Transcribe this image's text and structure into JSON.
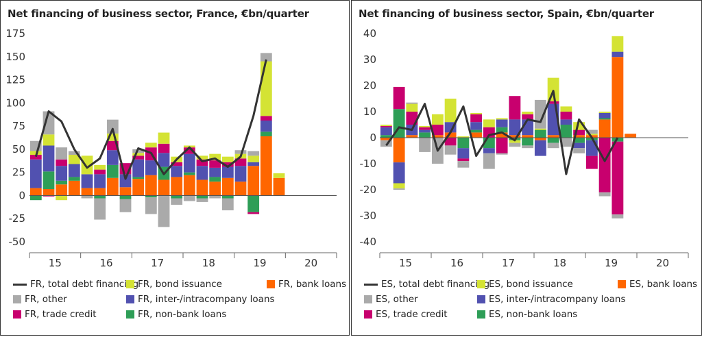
{
  "chart_data": [
    {
      "type": "bar",
      "stacked": true,
      "title": "Net financing of business sector, France, €bn/quarter",
      "ylim": [
        -50,
        175
      ],
      "yticks": [
        175,
        150,
        125,
        100,
        75,
        50,
        25,
        0,
        -25,
        -50
      ],
      "xtick_labels": [
        "15",
        "16",
        "17",
        "18",
        "19",
        "20"
      ],
      "quarters_per_year": 4,
      "first_quarter_index": 0,
      "series": [
        {
          "name": "FR, bank loans",
          "color": "#ff6600",
          "values": [
            8,
            7,
            12,
            16,
            8,
            8,
            19,
            9,
            18,
            22,
            17,
            20,
            22,
            17,
            15,
            19,
            15,
            32,
            64,
            19
          ]
        },
        {
          "name": "FR, non-bank loans",
          "color": "#2e9e57",
          "values": [
            -5,
            19,
            4,
            4,
            0,
            -3,
            14,
            -4,
            2,
            -2,
            14,
            -3,
            3,
            -3,
            5,
            -3,
            0,
            -18,
            5,
            0
          ]
        },
        {
          "name": "FR, inter-/intracompany loans",
          "color": "#5151b0",
          "values": [
            31,
            28,
            16,
            14,
            15,
            15,
            16,
            14,
            19,
            16,
            15,
            12,
            20,
            15,
            10,
            12,
            17,
            4,
            12,
            0
          ]
        },
        {
          "name": "FR, trade credit",
          "color": "#c8006e",
          "values": [
            5,
            -1,
            7,
            0,
            0,
            5,
            10,
            12,
            4,
            14,
            10,
            4,
            7,
            7,
            8,
            5,
            8,
            -2,
            5,
            0
          ]
        },
        {
          "name": "FR, bond issuance",
          "color": "#d4e334",
          "values": [
            4,
            12,
            -5,
            10,
            20,
            5,
            8,
            0,
            3,
            5,
            12,
            6,
            2,
            4,
            7,
            6,
            5,
            7,
            59,
            5
          ]
        },
        {
          "name": "FR, other",
          "color": "#aaaaaa",
          "values": [
            11,
            25,
            13,
            4,
            -3,
            -23,
            15,
            -14,
            4,
            -18,
            -34,
            -7,
            -6,
            -4,
            -3,
            -13,
            4,
            5,
            9,
            0
          ]
        }
      ],
      "line": {
        "name": "FR, total debt financing",
        "color": "#333333",
        "values": [
          42,
          91,
          80,
          50,
          30,
          40,
          72,
          18,
          51,
          46,
          23,
          39,
          52,
          37,
          40,
          31,
          42,
          86,
          147
        ]
      }
    },
    {
      "type": "bar",
      "stacked": true,
      "title": "Net financing of business sector, Spain, €bn/quarter",
      "ylim": [
        -40,
        40
      ],
      "yticks": [
        40,
        30,
        20,
        10,
        0,
        -10,
        -20,
        -30,
        -40
      ],
      "xtick_labels": [
        "15",
        "16",
        "17",
        "18",
        "19",
        "20"
      ],
      "quarters_per_year": 4,
      "first_quarter_index": 0,
      "series": [
        {
          "name": "ES, bank loans",
          "color": "#ff6600",
          "values": [
            -1,
            -9.5,
            1,
            0,
            1,
            2,
            0,
            2,
            0,
            2,
            1,
            1,
            -1,
            1,
            0,
            1,
            1,
            7,
            31,
            1.5
          ]
        },
        {
          "name": "ES, non-bank loans",
          "color": "#2e9e57",
          "values": [
            1,
            11,
            0,
            2,
            0,
            0,
            -4,
            1,
            -4,
            2,
            -1,
            -3,
            3,
            -2,
            5,
            -2,
            -1,
            0.5,
            -1.5,
            0
          ]
        },
        {
          "name": "ES, inter-/intracompany loans",
          "color": "#5151b0",
          "values": [
            3,
            -8,
            4,
            1,
            0,
            4,
            -4,
            3,
            -2,
            3,
            6,
            6,
            -6,
            12,
            2,
            -2,
            -6,
            2,
            2,
            0
          ]
        },
        {
          "name": "ES, trade credit",
          "color": "#c8006e",
          "values": [
            0.5,
            8.5,
            5,
            1,
            4,
            -3,
            -1,
            3,
            4,
            -6,
            9,
            2,
            0,
            1,
            3,
            2,
            -5,
            -21,
            -28,
            0
          ]
        },
        {
          "name": "ES, bond issuance",
          "color": "#d4e334",
          "values": [
            0.5,
            -2,
            3,
            0.5,
            4,
            9,
            0.5,
            0.5,
            3,
            0.5,
            -1,
            1,
            0.5,
            9,
            2,
            3,
            0.5,
            0.5,
            6,
            0
          ]
        },
        {
          "name": "ES, other",
          "color": "#aaaaaa",
          "values": [
            -2.5,
            -0.5,
            0.5,
            -5.5,
            -10,
            -3.5,
            -2.5,
            0,
            -6,
            -0.5,
            -1.5,
            -1,
            11,
            -2,
            -3.5,
            -2,
            1.5,
            -1.5,
            -1.5,
            0
          ]
        }
      ],
      "line": {
        "name": "ES, total debt financing",
        "color": "#333333",
        "values": [
          -3,
          4,
          3,
          13,
          -5,
          2,
          12,
          -7,
          1,
          2,
          -1,
          7,
          6,
          18,
          -14,
          7,
          0,
          -9,
          0
        ]
      }
    }
  ],
  "legend_fr": [
    {
      "label": "FR, total debt financing",
      "kind": "line",
      "color": "#333333"
    },
    {
      "label": "FR, bond issuance",
      "kind": "box",
      "color": "#d4e334"
    },
    {
      "label": "FR, bank loans",
      "kind": "box",
      "color": "#ff6600"
    },
    {
      "label": "FR, other",
      "kind": "box",
      "color": "#aaaaaa"
    },
    {
      "label": "FR, inter-/intracompany loans",
      "kind": "box",
      "color": "#5151b0"
    },
    {
      "label": "FR, trade credit",
      "kind": "box",
      "color": "#c8006e"
    },
    {
      "label": "FR, non-bank loans",
      "kind": "box",
      "color": "#2e9e57"
    }
  ],
  "legend_es": [
    {
      "label": "ES, total debt financing",
      "kind": "line",
      "color": "#333333"
    },
    {
      "label": "ES, bond issuance",
      "kind": "box",
      "color": "#d4e334"
    },
    {
      "label": "ES, bank loans",
      "kind": "box",
      "color": "#ff6600"
    },
    {
      "label": "ES, other",
      "kind": "box",
      "color": "#aaaaaa"
    },
    {
      "label": "ES, inter-/intracompany loans",
      "kind": "box",
      "color": "#5151b0"
    },
    {
      "label": "ES, trade credit",
      "kind": "box",
      "color": "#c8006e"
    },
    {
      "label": "ES, non-bank loans",
      "kind": "box",
      "color": "#2e9e57"
    }
  ]
}
